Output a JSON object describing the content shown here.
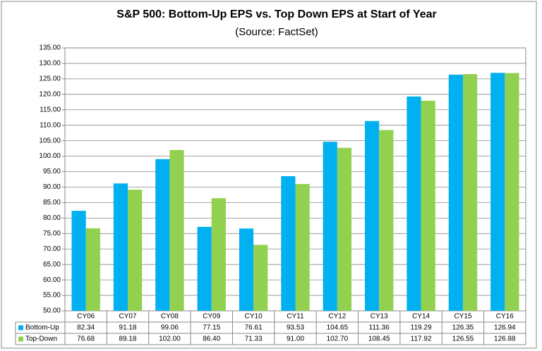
{
  "chart_data": {
    "type": "bar",
    "title": "S&P 500: Bottom-Up EPS vs. Top Down EPS at Start of Year",
    "subtitle": "(Source: FactSet)",
    "categories": [
      "CY06",
      "CY07",
      "CY08",
      "CY09",
      "CY10",
      "CY11",
      "CY12",
      "CY13",
      "CY14",
      "CY15",
      "CY16"
    ],
    "series": [
      {
        "name": "Bottom-Up",
        "color": "#00b0f0",
        "values": [
          82.34,
          91.18,
          99.06,
          77.15,
          76.61,
          93.53,
          104.65,
          111.36,
          119.29,
          126.35,
          126.94
        ],
        "value_labels": [
          "82.34",
          "91.18",
          "99.06",
          "77.15",
          "76.61",
          "93.53",
          "104.65",
          "111.36",
          "119.29",
          "126.35",
          "126.94"
        ]
      },
      {
        "name": "Top-Down",
        "color": "#92d050",
        "values": [
          76.68,
          89.18,
          102.0,
          86.4,
          71.33,
          91.0,
          102.7,
          108.45,
          117.92,
          126.55,
          126.88
        ],
        "value_labels": [
          "76.68",
          "89.18",
          "102.00",
          "86.40",
          "71.33",
          "91.00",
          "102.70",
          "108.45",
          "117.92",
          "126.55",
          "126.88"
        ]
      }
    ],
    "ylim": [
      50,
      135
    ],
    "yticks": [
      {
        "value": 50,
        "label": "50.00"
      },
      {
        "value": 55,
        "label": "55.00"
      },
      {
        "value": 60,
        "label": "60.00"
      },
      {
        "value": 65,
        "label": "65.00"
      },
      {
        "value": 70,
        "label": "70.00"
      },
      {
        "value": 75,
        "label": "75.00"
      },
      {
        "value": 80,
        "label": "80.00"
      },
      {
        "value": 85,
        "label": "85.00"
      },
      {
        "value": 90,
        "label": "90.00"
      },
      {
        "value": 95,
        "label": "95.00"
      },
      {
        "value": 100,
        "label": "100.00"
      },
      {
        "value": 105,
        "label": "105.00"
      },
      {
        "value": 110,
        "label": "110.00"
      },
      {
        "value": 115,
        "label": "115.00"
      },
      {
        "value": 120,
        "label": "120.00"
      },
      {
        "value": 125,
        "label": "125.00"
      },
      {
        "value": 130,
        "label": "130.00"
      },
      {
        "value": 135,
        "label": "135.00"
      }
    ],
    "grid": true
  }
}
